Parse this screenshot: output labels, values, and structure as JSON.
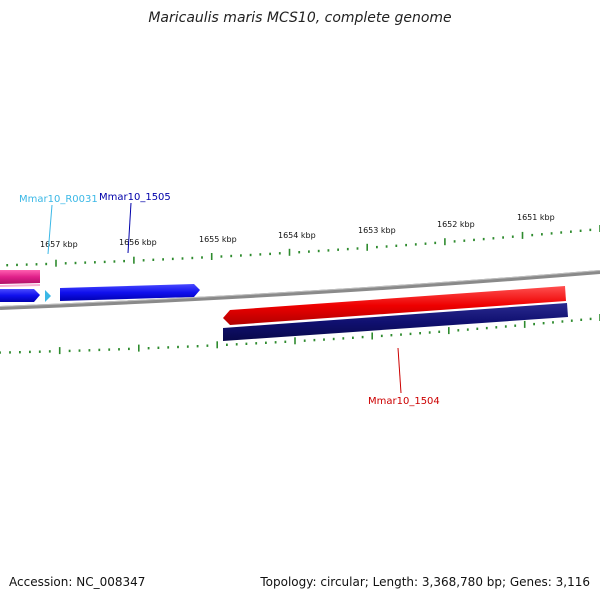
{
  "title": "Maricaulis maris MCS10, complete genome",
  "footer": {
    "accession": "Accession: NC_008347",
    "summary": "Topology: circular; Length: 3,368,780 bp; Genes: 3,116"
  },
  "ruler": {
    "labels": [
      "1657 kbp",
      "1656 kbp",
      "1655 kbp",
      "1654 kbp",
      "1653 kbp",
      "1652 kbp",
      "1651 kbp"
    ],
    "tick_color": "#2e8b2e"
  },
  "features": [
    {
      "id": "r0031",
      "label": "Mmar10_R0031",
      "color": "#3bb8e6",
      "type": "rRNA"
    },
    {
      "id": "1505",
      "label": "Mmar10_1505",
      "color": "#0000aa",
      "type": "gene"
    },
    {
      "id": "1504",
      "label": "Mmar10_1504",
      "color": "#cc0000",
      "type": "gene"
    }
  ],
  "colors": {
    "backbone": "#888888",
    "forward_cds": "#1010ee",
    "reverse_cds": "#ee0000",
    "gene_track": "#101070",
    "rna": "#e0208a"
  }
}
